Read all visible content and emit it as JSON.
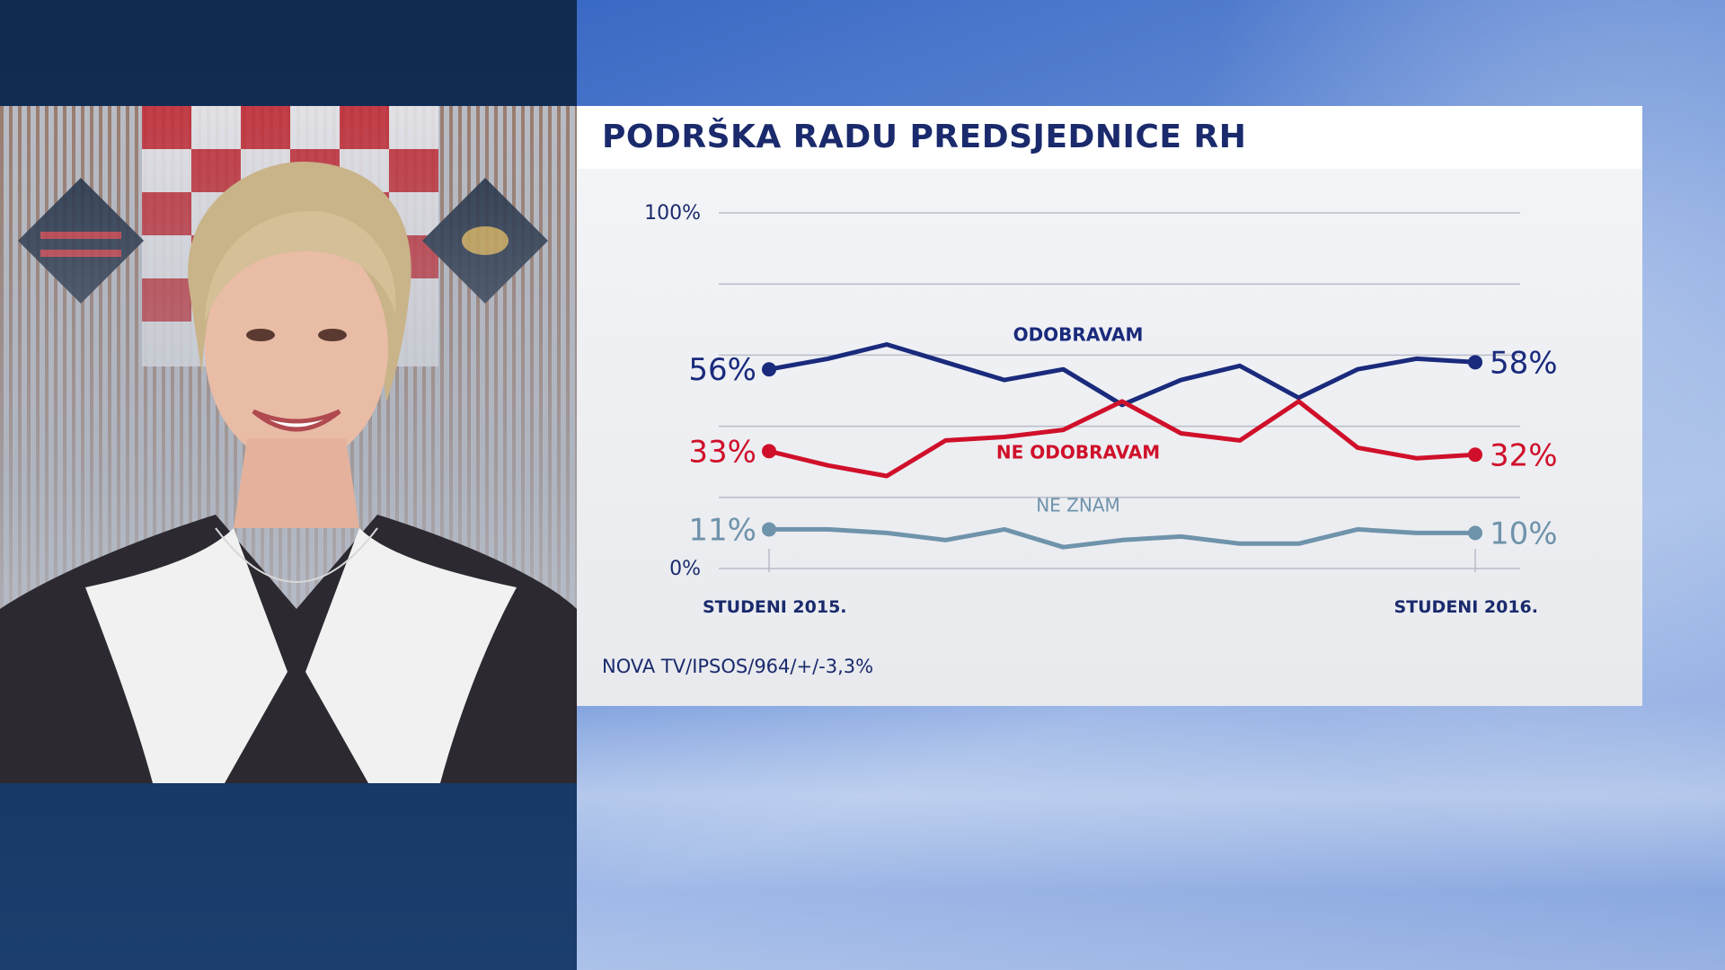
{
  "title": "PODRŠKA RADU PREDSJEDNICE RH",
  "source": "NOVA TV/IPSOS/964/+/-3,3%",
  "colors": {
    "approve": "#1a2a7c",
    "disapprove": "#d0102a",
    "dont_know": "#6f93ab",
    "axis_text": "#1a2a6c",
    "grid": "#b8bcc8"
  },
  "chart_data": {
    "type": "line",
    "ylim": [
      0,
      100
    ],
    "y_ticks": [
      {
        "value": 0,
        "label": "0%"
      },
      {
        "value": 100,
        "label": "100%"
      }
    ],
    "grid_values": [
      0,
      20,
      40,
      60,
      80,
      100
    ],
    "x_labels": {
      "start": "STUDENI 2015.",
      "end": "STUDENI 2016."
    },
    "x": [
      0,
      1,
      2,
      3,
      4,
      5,
      6,
      7,
      8,
      9,
      10,
      11,
      12
    ],
    "series": [
      {
        "key": "approve",
        "name": "ODOBRAVAM",
        "values": [
          56,
          59,
          63,
          58,
          53,
          56,
          46,
          53,
          57,
          48,
          56,
          59,
          58
        ],
        "start_label": "56%",
        "end_label": "58%"
      },
      {
        "key": "disapprove",
        "name": "NE ODOBRAVAM",
        "values": [
          33,
          29,
          26,
          36,
          37,
          39,
          47,
          38,
          36,
          47,
          34,
          31,
          32
        ],
        "start_label": "33%",
        "end_label": "32%"
      },
      {
        "key": "dont_know",
        "name": "NE ZNAM",
        "values": [
          11,
          11,
          10,
          8,
          11,
          6,
          8,
          9,
          7,
          7,
          11,
          10,
          10
        ],
        "start_label": "11%",
        "end_label": "10%"
      }
    ]
  }
}
